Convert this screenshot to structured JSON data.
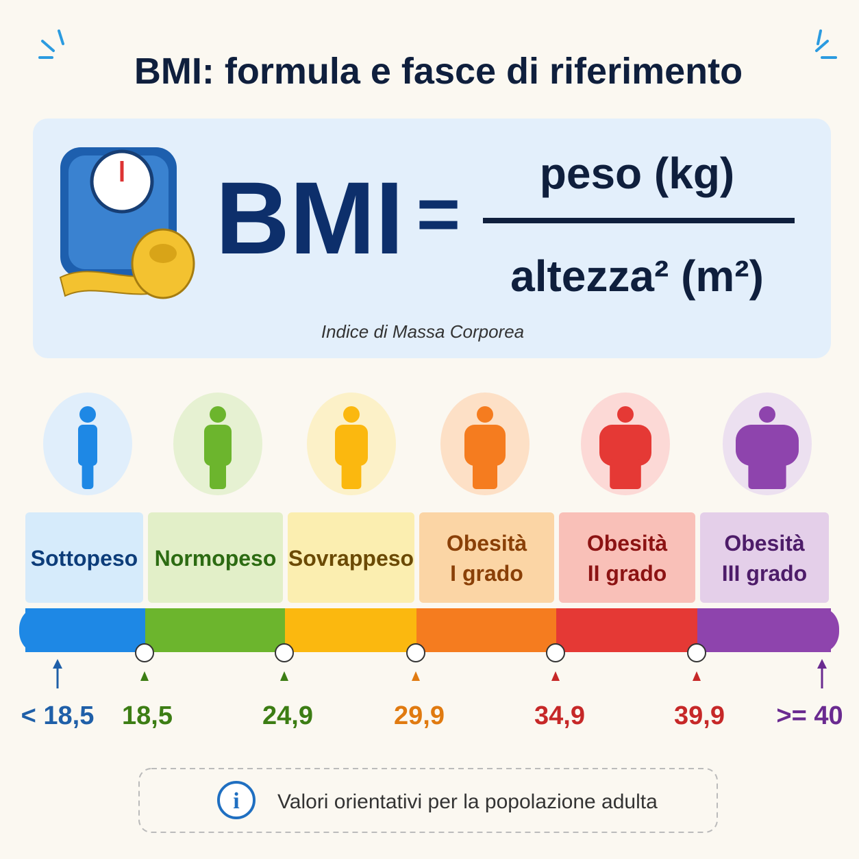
{
  "header": {
    "title": "BMI: formula e fasce di riferimento"
  },
  "formula": {
    "lhs": "BMI",
    "operator": "=",
    "numerator": "peso (kg)",
    "denominator": "altezza² (m²)",
    "caption": "Indice di Massa Corporea"
  },
  "categories": [
    {
      "lines": [
        "Sottopeso"
      ]
    },
    {
      "lines": [
        "Normopeso"
      ]
    },
    {
      "lines": [
        "Sovrappeso"
      ]
    },
    {
      "lines": [
        "Obesità",
        "I grado"
      ]
    },
    {
      "lines": [
        "Obesità",
        "II grado"
      ]
    },
    {
      "lines": [
        "Obesità",
        "III grado"
      ]
    }
  ],
  "thresholds": [
    "< 18,5",
    "18,5",
    "24,9",
    "29,9",
    "34,9",
    "39,9",
    ">= 40"
  ],
  "note": "Valori orientativi per la popolazione adulta"
}
